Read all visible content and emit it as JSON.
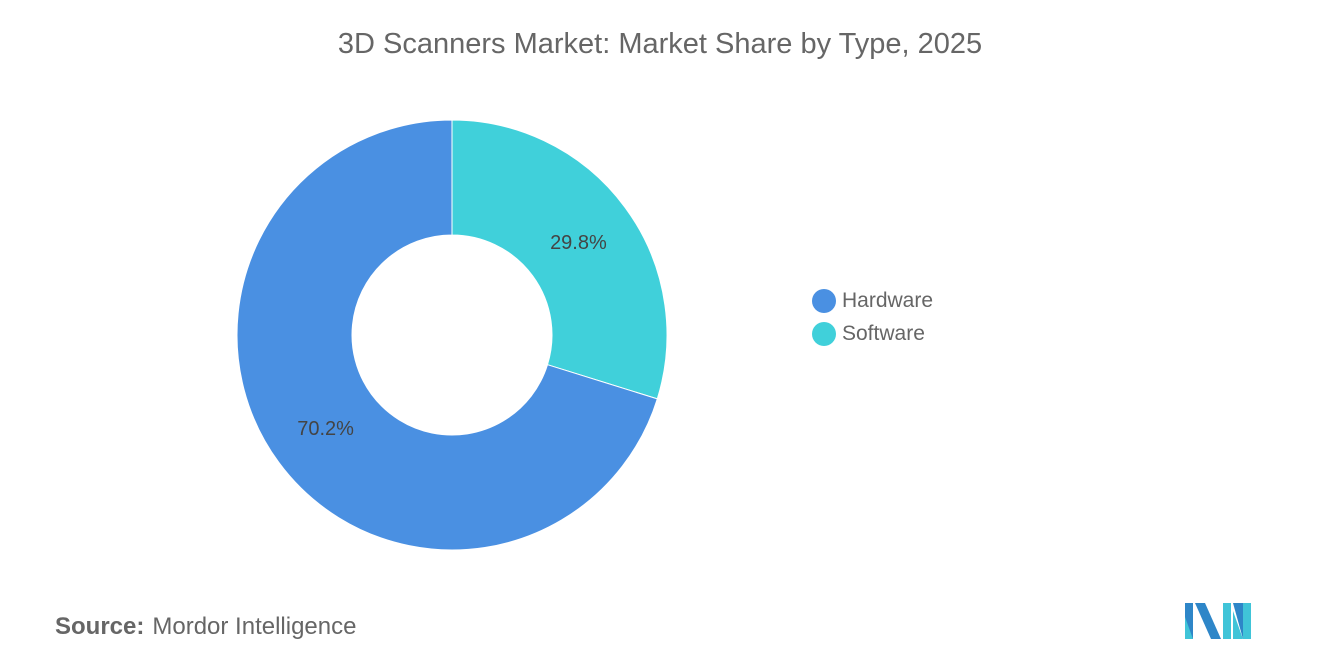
{
  "chart_data": {
    "type": "pie",
    "donut": true,
    "title": "3D Scanners Market: Market Share by Type, 2025",
    "categories": [
      "Hardware",
      "Software"
    ],
    "values": [
      70.2,
      29.8
    ],
    "data_labels": [
      "70.2%",
      "29.8%"
    ],
    "colors": [
      "#4A90E2",
      "#40D0DA"
    ],
    "legend": {
      "placement": "right",
      "entries": [
        "Hardware",
        "Software"
      ]
    }
  },
  "source": {
    "label": "Source:",
    "text": "Mordor Intelligence"
  },
  "logo": {
    "text": "Mordor Intelligence logo"
  }
}
